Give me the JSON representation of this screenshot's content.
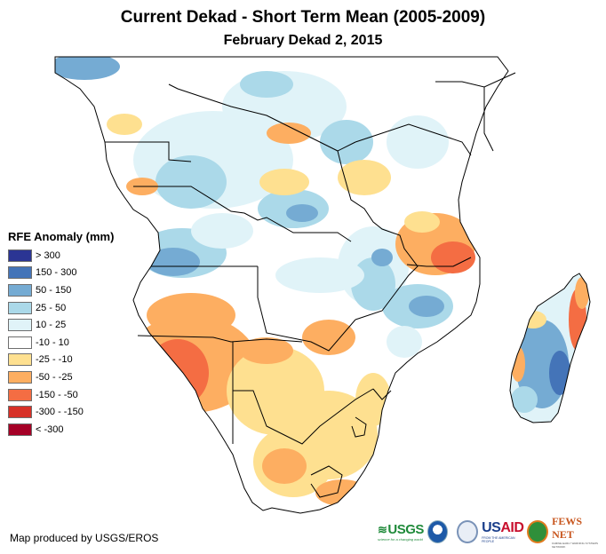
{
  "header": {
    "title": "Current Dekad - Short Term Mean (2005-2009)",
    "subtitle": "February Dekad 2, 2015"
  },
  "legend": {
    "title": "RFE Anomaly (mm)",
    "items": [
      {
        "label": "> 300",
        "color": "#2b3594"
      },
      {
        "label": "150 - 300",
        "color": "#4474b8"
      },
      {
        "label": "50 - 150",
        "color": "#75abd3"
      },
      {
        "label": "25 - 50",
        "color": "#abd9e9"
      },
      {
        "label": "10 - 25",
        "color": "#e0f3f8"
      },
      {
        "label": "-10 - 10",
        "color": "#ffffff"
      },
      {
        "label": "-25 - -10",
        "color": "#fee090"
      },
      {
        "label": "-50 - -25",
        "color": "#fdae61"
      },
      {
        "label": "-150 - -50",
        "color": "#f46d43"
      },
      {
        "label": "-300 - -150",
        "color": "#d73027"
      },
      {
        "label": "< -300",
        "color": "#a50026"
      }
    ]
  },
  "credit": "Map produced by USGS/EROS",
  "logos": {
    "usgs": "USGS",
    "usgs_tag": "science for a changing world",
    "usaid_a": "US",
    "usaid_b": "AID",
    "usaid_tag": "FROM THE AMERICAN PEOPLE",
    "fews": "FEWS NET",
    "fews_tag": "FAMINE EARLY WARNING SYSTEMS NETWORK"
  },
  "map": {
    "region": "Central and Southern Africa with Madagascar",
    "border_color": "#000000",
    "background": "#ffffff"
  }
}
